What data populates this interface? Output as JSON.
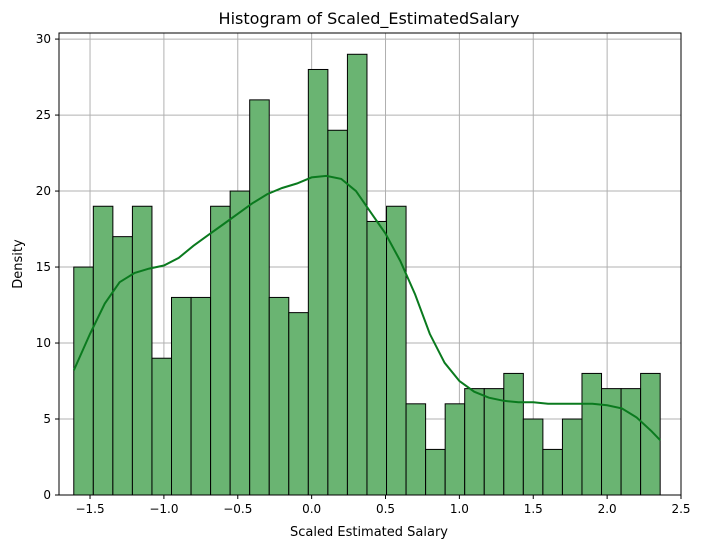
{
  "chart_data": {
    "type": "bar",
    "title": "Histogram of Scaled_EstimatedSalary",
    "xlabel": "Scaled Estimated Salary",
    "ylabel": "Density",
    "xlim": [
      -1.71,
      2.5
    ],
    "ylim": [
      0,
      30.4
    ],
    "grid": true,
    "xticks": [
      -1.5,
      -1.0,
      -0.5,
      0.0,
      0.5,
      1.0,
      1.5,
      2.0,
      2.5
    ],
    "xtick_labels": [
      "−1.5",
      "−1.0",
      "−0.5",
      "0.0",
      "0.5",
      "1.0",
      "1.5",
      "2.0",
      "2.5"
    ],
    "yticks": [
      0,
      5,
      10,
      15,
      20,
      25,
      30
    ],
    "ytick_labels": [
      "0",
      "5",
      "10",
      "15",
      "20",
      "25",
      "30"
    ],
    "bin_start": -1.61,
    "bin_width": 0.1323,
    "values": [
      15,
      19,
      17,
      19,
      9,
      13,
      13,
      19,
      20,
      26,
      13,
      12,
      28,
      24,
      29,
      18,
      19,
      6,
      3,
      6,
      7,
      7,
      8,
      5,
      3,
      5,
      8,
      7,
      7,
      8
    ],
    "bar_color": "#6ab472",
    "edge_color": "#000000",
    "kde": {
      "color": "#0a7a1e",
      "x": [
        -1.61,
        -1.5,
        -1.4,
        -1.3,
        -1.2,
        -1.1,
        -1.0,
        -0.9,
        -0.8,
        -0.7,
        -0.6,
        -0.5,
        -0.4,
        -0.3,
        -0.2,
        -0.1,
        0.0,
        0.1,
        0.2,
        0.3,
        0.4,
        0.5,
        0.6,
        0.7,
        0.8,
        0.9,
        1.0,
        1.1,
        1.2,
        1.3,
        1.4,
        1.5,
        1.6,
        1.7,
        1.8,
        1.9,
        2.0,
        2.1,
        2.2,
        2.3,
        2.36
      ],
      "y": [
        8.2,
        10.6,
        12.6,
        14.0,
        14.6,
        14.9,
        15.1,
        15.6,
        16.4,
        17.1,
        17.8,
        18.5,
        19.2,
        19.8,
        20.2,
        20.5,
        20.9,
        21.0,
        20.8,
        20.0,
        18.6,
        17.2,
        15.4,
        13.2,
        10.6,
        8.7,
        7.5,
        6.8,
        6.4,
        6.2,
        6.1,
        6.1,
        6.0,
        6.0,
        6.0,
        6.0,
        5.9,
        5.7,
        5.1,
        4.2,
        3.6
      ]
    }
  }
}
